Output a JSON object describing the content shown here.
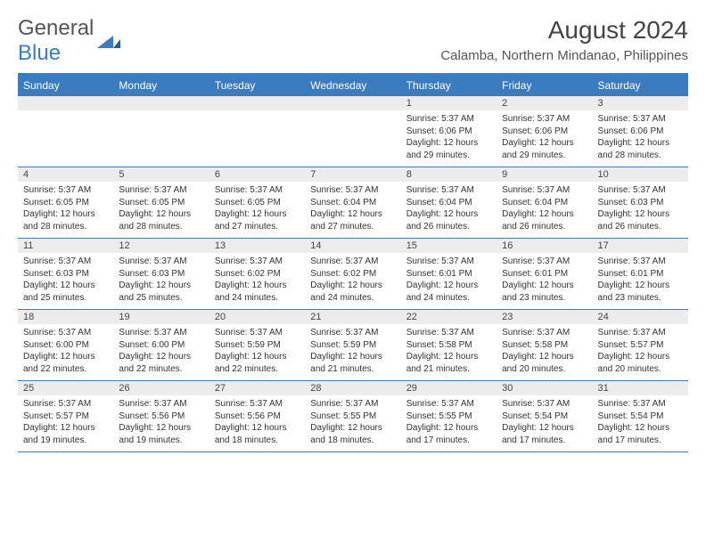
{
  "logo": {
    "general": "General",
    "blue": "Blue"
  },
  "title": "August 2024",
  "location": "Calamba, Northern Mindanao, Philippines",
  "colors": {
    "header_bg": "#3b7bbf",
    "daynum_bg": "#ececec",
    "border": "#3b7bbf"
  },
  "day_headers": [
    "Sunday",
    "Monday",
    "Tuesday",
    "Wednesday",
    "Thursday",
    "Friday",
    "Saturday"
  ],
  "weeks": [
    [
      null,
      null,
      null,
      null,
      {
        "n": "1",
        "sr": "Sunrise: 5:37 AM",
        "ss": "Sunset: 6:06 PM",
        "dl": "Daylight: 12 hours and 29 minutes."
      },
      {
        "n": "2",
        "sr": "Sunrise: 5:37 AM",
        "ss": "Sunset: 6:06 PM",
        "dl": "Daylight: 12 hours and 29 minutes."
      },
      {
        "n": "3",
        "sr": "Sunrise: 5:37 AM",
        "ss": "Sunset: 6:06 PM",
        "dl": "Daylight: 12 hours and 28 minutes."
      }
    ],
    [
      {
        "n": "4",
        "sr": "Sunrise: 5:37 AM",
        "ss": "Sunset: 6:05 PM",
        "dl": "Daylight: 12 hours and 28 minutes."
      },
      {
        "n": "5",
        "sr": "Sunrise: 5:37 AM",
        "ss": "Sunset: 6:05 PM",
        "dl": "Daylight: 12 hours and 28 minutes."
      },
      {
        "n": "6",
        "sr": "Sunrise: 5:37 AM",
        "ss": "Sunset: 6:05 PM",
        "dl": "Daylight: 12 hours and 27 minutes."
      },
      {
        "n": "7",
        "sr": "Sunrise: 5:37 AM",
        "ss": "Sunset: 6:04 PM",
        "dl": "Daylight: 12 hours and 27 minutes."
      },
      {
        "n": "8",
        "sr": "Sunrise: 5:37 AM",
        "ss": "Sunset: 6:04 PM",
        "dl": "Daylight: 12 hours and 26 minutes."
      },
      {
        "n": "9",
        "sr": "Sunrise: 5:37 AM",
        "ss": "Sunset: 6:04 PM",
        "dl": "Daylight: 12 hours and 26 minutes."
      },
      {
        "n": "10",
        "sr": "Sunrise: 5:37 AM",
        "ss": "Sunset: 6:03 PM",
        "dl": "Daylight: 12 hours and 26 minutes."
      }
    ],
    [
      {
        "n": "11",
        "sr": "Sunrise: 5:37 AM",
        "ss": "Sunset: 6:03 PM",
        "dl": "Daylight: 12 hours and 25 minutes."
      },
      {
        "n": "12",
        "sr": "Sunrise: 5:37 AM",
        "ss": "Sunset: 6:03 PM",
        "dl": "Daylight: 12 hours and 25 minutes."
      },
      {
        "n": "13",
        "sr": "Sunrise: 5:37 AM",
        "ss": "Sunset: 6:02 PM",
        "dl": "Daylight: 12 hours and 24 minutes."
      },
      {
        "n": "14",
        "sr": "Sunrise: 5:37 AM",
        "ss": "Sunset: 6:02 PM",
        "dl": "Daylight: 12 hours and 24 minutes."
      },
      {
        "n": "15",
        "sr": "Sunrise: 5:37 AM",
        "ss": "Sunset: 6:01 PM",
        "dl": "Daylight: 12 hours and 24 minutes."
      },
      {
        "n": "16",
        "sr": "Sunrise: 5:37 AM",
        "ss": "Sunset: 6:01 PM",
        "dl": "Daylight: 12 hours and 23 minutes."
      },
      {
        "n": "17",
        "sr": "Sunrise: 5:37 AM",
        "ss": "Sunset: 6:01 PM",
        "dl": "Daylight: 12 hours and 23 minutes."
      }
    ],
    [
      {
        "n": "18",
        "sr": "Sunrise: 5:37 AM",
        "ss": "Sunset: 6:00 PM",
        "dl": "Daylight: 12 hours and 22 minutes."
      },
      {
        "n": "19",
        "sr": "Sunrise: 5:37 AM",
        "ss": "Sunset: 6:00 PM",
        "dl": "Daylight: 12 hours and 22 minutes."
      },
      {
        "n": "20",
        "sr": "Sunrise: 5:37 AM",
        "ss": "Sunset: 5:59 PM",
        "dl": "Daylight: 12 hours and 22 minutes."
      },
      {
        "n": "21",
        "sr": "Sunrise: 5:37 AM",
        "ss": "Sunset: 5:59 PM",
        "dl": "Daylight: 12 hours and 21 minutes."
      },
      {
        "n": "22",
        "sr": "Sunrise: 5:37 AM",
        "ss": "Sunset: 5:58 PM",
        "dl": "Daylight: 12 hours and 21 minutes."
      },
      {
        "n": "23",
        "sr": "Sunrise: 5:37 AM",
        "ss": "Sunset: 5:58 PM",
        "dl": "Daylight: 12 hours and 20 minutes."
      },
      {
        "n": "24",
        "sr": "Sunrise: 5:37 AM",
        "ss": "Sunset: 5:57 PM",
        "dl": "Daylight: 12 hours and 20 minutes."
      }
    ],
    [
      {
        "n": "25",
        "sr": "Sunrise: 5:37 AM",
        "ss": "Sunset: 5:57 PM",
        "dl": "Daylight: 12 hours and 19 minutes."
      },
      {
        "n": "26",
        "sr": "Sunrise: 5:37 AM",
        "ss": "Sunset: 5:56 PM",
        "dl": "Daylight: 12 hours and 19 minutes."
      },
      {
        "n": "27",
        "sr": "Sunrise: 5:37 AM",
        "ss": "Sunset: 5:56 PM",
        "dl": "Daylight: 12 hours and 18 minutes."
      },
      {
        "n": "28",
        "sr": "Sunrise: 5:37 AM",
        "ss": "Sunset: 5:55 PM",
        "dl": "Daylight: 12 hours and 18 minutes."
      },
      {
        "n": "29",
        "sr": "Sunrise: 5:37 AM",
        "ss": "Sunset: 5:55 PM",
        "dl": "Daylight: 12 hours and 17 minutes."
      },
      {
        "n": "30",
        "sr": "Sunrise: 5:37 AM",
        "ss": "Sunset: 5:54 PM",
        "dl": "Daylight: 12 hours and 17 minutes."
      },
      {
        "n": "31",
        "sr": "Sunrise: 5:37 AM",
        "ss": "Sunset: 5:54 PM",
        "dl": "Daylight: 12 hours and 17 minutes."
      }
    ]
  ]
}
